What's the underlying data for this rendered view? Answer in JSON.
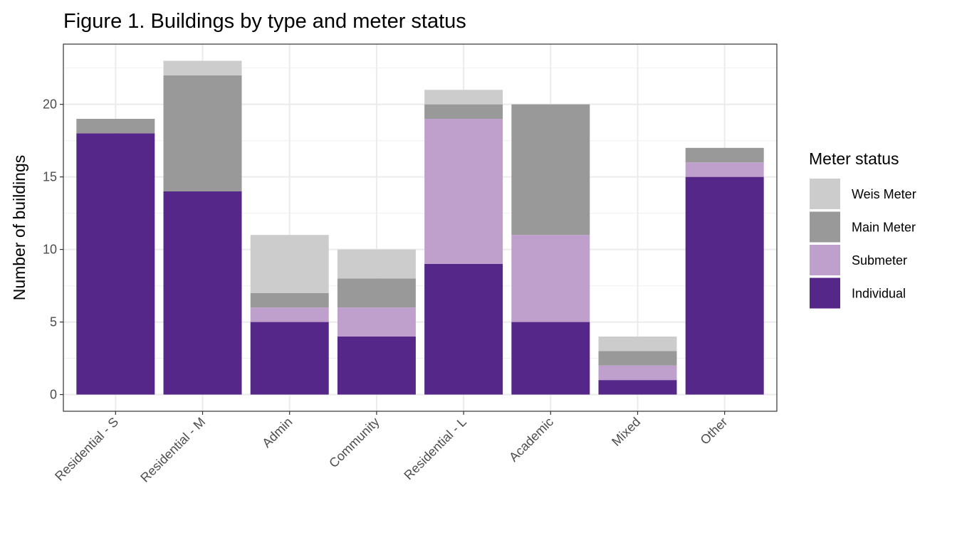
{
  "chart_data": {
    "type": "bar",
    "stacked": true,
    "title": "Figure 1. Buildings by type and meter status",
    "xlabel": "",
    "ylabel": "Number of buildings",
    "categories": [
      "Residential - S",
      "Residential - M",
      "Admin",
      "Community",
      "Residential - L",
      "Academic",
      "Mixed",
      "Other"
    ],
    "series": [
      {
        "name": "Individual",
        "color": "#542788",
        "values": [
          18,
          14,
          5,
          4,
          9,
          5,
          1,
          15
        ]
      },
      {
        "name": "Submeter",
        "color": "#bfa0cc",
        "values": [
          0,
          0,
          1,
          2,
          10,
          6,
          1,
          1
        ]
      },
      {
        "name": "Main Meter",
        "color": "#999999",
        "values": [
          1,
          8,
          1,
          2,
          1,
          9,
          1,
          1
        ]
      },
      {
        "name": "Weis Meter",
        "color": "#cccccc",
        "values": [
          0,
          1,
          4,
          2,
          1,
          0,
          1,
          0
        ]
      }
    ],
    "yticks": [
      0,
      5,
      10,
      15,
      20
    ],
    "ylim": [
      -1.15,
      24.15
    ],
    "grid": true,
    "legend": {
      "title": "Meter status",
      "placement": "right",
      "order": [
        "Weis Meter",
        "Main Meter",
        "Submeter",
        "Individual"
      ]
    }
  }
}
